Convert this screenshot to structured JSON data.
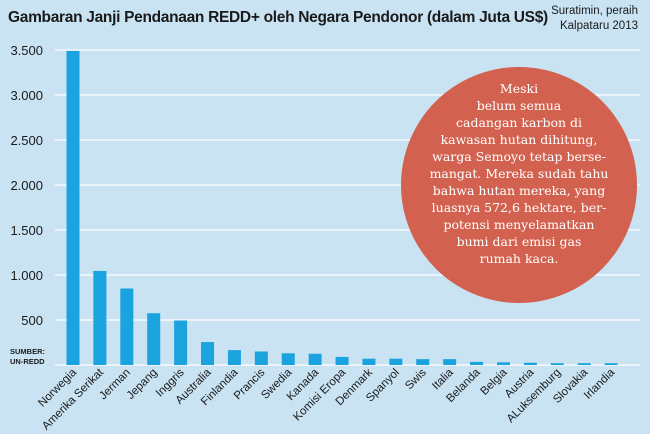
{
  "header": {
    "title": "Gambaran Janji Pendanaan REDD+ oleh Negara Pendonor (dalam Juta US$)",
    "credit_line1": "Suratimin, peraih",
    "credit_line2": "Kalpataru 2013"
  },
  "source": {
    "line1": "SUMBER:",
    "line2": "UN-REDD"
  },
  "callout": {
    "lines": [
      "Meski",
      "belum semua",
      "cadangan karbon di",
      "kawasan hutan dihitung,",
      "warga Semoyo tetap berse-",
      "mangat. Mereka sudah tahu",
      "bahwa hutan mereka, yang",
      "luasnya 572,6 hektare, ber-",
      "potensi menyelamatkan",
      "bumi dari emisi gas",
      "rumah kaca."
    ]
  },
  "colors": {
    "background": "#c9e3f3",
    "bar": "#1ba3e0",
    "grid": "#ffffff",
    "callout": "#d2624f"
  },
  "chart_data": {
    "type": "bar",
    "title": "Gambaran Janji Pendanaan REDD+ oleh Negara Pendonor (dalam Juta US$)",
    "xlabel": "",
    "ylabel": "",
    "ylim": [
      0,
      3500
    ],
    "yticks": [
      500,
      1000,
      1500,
      2000,
      2500,
      3000,
      3500
    ],
    "ytick_labels": [
      "500",
      "1.000",
      "1.500",
      "2.000",
      "2.500",
      "3.000",
      "3.500"
    ],
    "grid": true,
    "categories": [
      "Norwegia",
      "Amerika Serikat",
      "Jerman",
      "Jepang",
      "Inggris",
      "Australia",
      "Finlandia",
      "Prancis",
      "Swedia",
      "Kanada",
      "Komisi Eropa",
      "Denmark",
      "Spanyol",
      "Swis",
      "Italia",
      "Belanda",
      "Belgia",
      "Austria",
      "ALuksemburg",
      "Slovakia",
      "Irlandia"
    ],
    "values": [
      3490,
      1045,
      850,
      575,
      495,
      255,
      165,
      150,
      130,
      125,
      90,
      70,
      70,
      65,
      65,
      35,
      30,
      25,
      20,
      20,
      20
    ]
  }
}
